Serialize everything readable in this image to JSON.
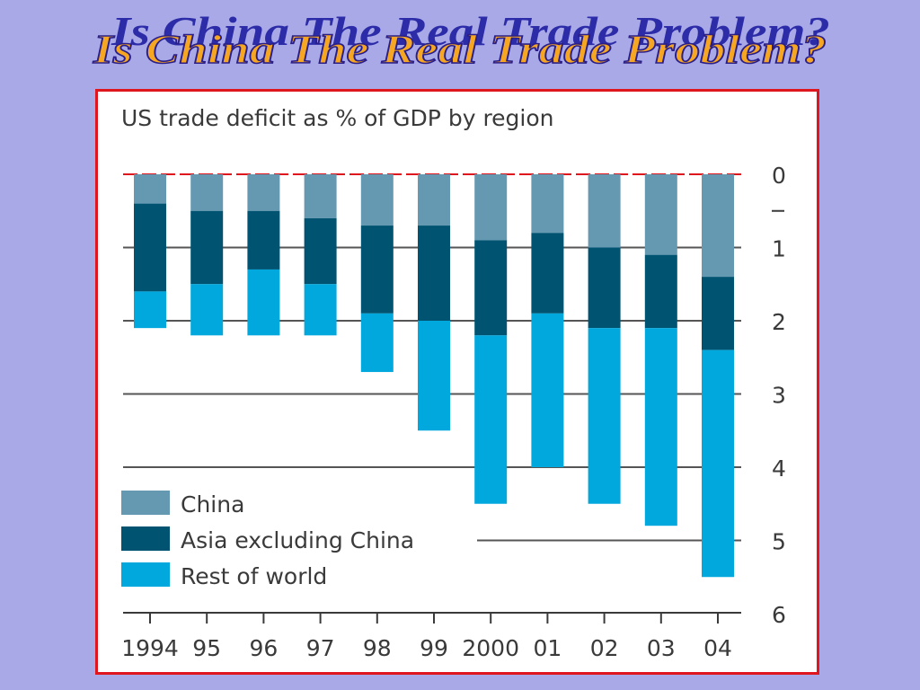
{
  "slide": {
    "title": "Is China The Real Trade Problem?"
  },
  "chart_data": {
    "type": "bar",
    "stacked": true,
    "title": "US trade deficit as % of GDP by region",
    "xlabel": "",
    "ylabel": "",
    "categories": [
      "1994",
      "95",
      "96",
      "97",
      "98",
      "99",
      "2000",
      "01",
      "02",
      "03",
      "04"
    ],
    "series": [
      {
        "name": "China",
        "color": "#6599b2",
        "values": [
          0.4,
          0.5,
          0.5,
          0.6,
          0.7,
          0.7,
          0.9,
          0.8,
          1.0,
          1.1,
          1.4
        ]
      },
      {
        "name": "Asia excluding China",
        "color": "#005472",
        "values": [
          1.2,
          1.0,
          0.8,
          0.9,
          1.2,
          1.3,
          1.3,
          1.1,
          1.1,
          1.0,
          1.0
        ]
      },
      {
        "name": "Rest of world",
        "color": "#00a8de",
        "values": [
          0.5,
          0.7,
          0.9,
          0.7,
          0.8,
          1.5,
          2.3,
          2.1,
          2.4,
          2.7,
          3.1
        ]
      }
    ],
    "ylim": [
      0,
      6
    ],
    "y_inverted": true,
    "yticks": [
      "0",
      "1",
      "2",
      "3",
      "4",
      "5",
      "6"
    ],
    "grid": true,
    "legend_position": "bottom-left",
    "colors": {
      "zero_line": "#e0161e",
      "grid": "#555555",
      "frame": "#e0161e"
    }
  }
}
